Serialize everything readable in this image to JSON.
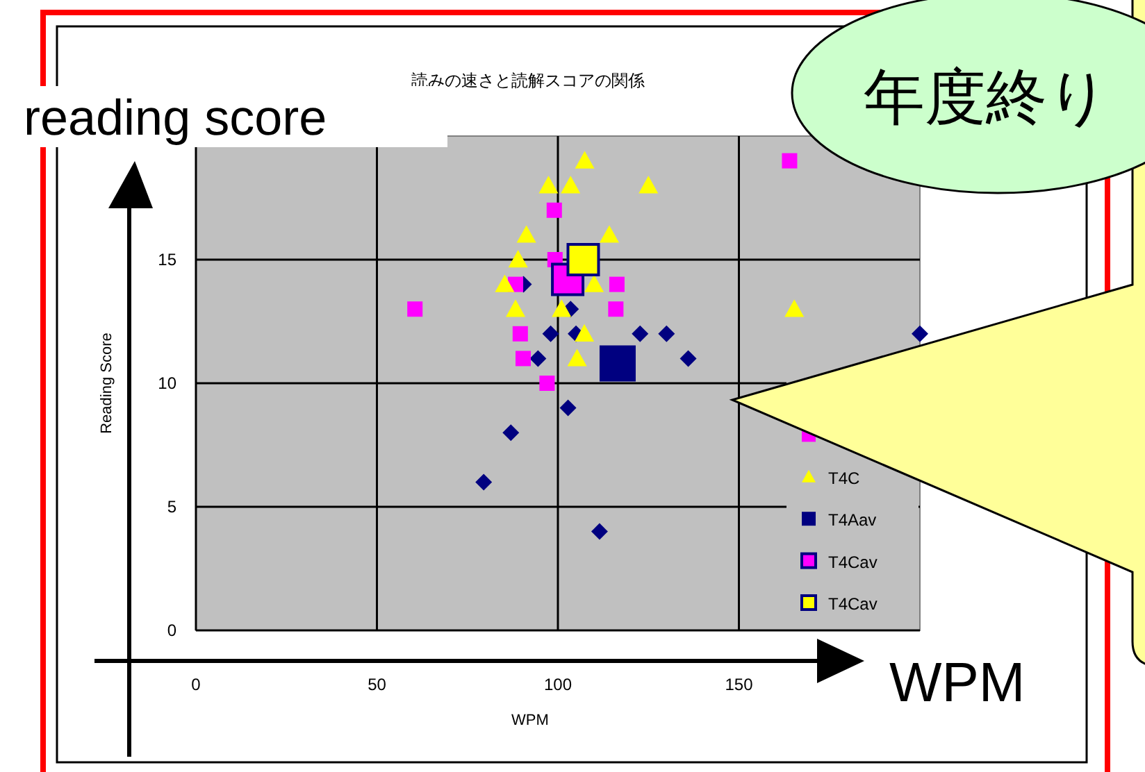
{
  "chart_data": {
    "type": "scatter",
    "title": "読みの速さと読解スコアの関係",
    "xlabel": "WPM",
    "ylabel": "Reading Score",
    "xlim": [
      0,
      200
    ],
    "ylim": [
      0,
      20
    ],
    "xticks": [
      0,
      50,
      100,
      150
    ],
    "yticks": [
      0,
      5,
      10,
      15
    ],
    "grid": true,
    "legend": "right",
    "annotations": [
      "reading score",
      "WPM",
      "年度終り"
    ],
    "series": [
      {
        "marker": "diamond",
        "color": "#000080",
        "x": [
          90.5,
          103.5,
          98,
          105,
          122.7,
          130,
          94.5,
          136,
          200,
          102.8,
          87,
          79.5,
          111.5
        ],
        "values": [
          14,
          13,
          12,
          12,
          12,
          12,
          11,
          11,
          12,
          9,
          8,
          6,
          4
        ]
      },
      {
        "marker": "square",
        "color": "#ff00ff",
        "x": [
          164,
          99,
          99.2,
          88.3,
          116.3,
          60.5,
          116,
          89.6,
          90.4,
          97
        ],
        "values": [
          19,
          17,
          15,
          14,
          14,
          13,
          13,
          12,
          11,
          10
        ]
      },
      {
        "name": "T4C",
        "marker": "triangle",
        "color": "#ffff00",
        "x": [
          107.4,
          97.4,
          103.5,
          125,
          91.3,
          114.2,
          89,
          85.3,
          110,
          88.3,
          101,
          165.3,
          107.3,
          105.3
        ],
        "values": [
          19,
          18,
          18,
          18,
          16,
          16,
          15,
          14,
          14,
          13,
          13,
          13,
          12,
          11
        ]
      },
      {
        "name": "T4Aav",
        "marker": "square",
        "color": "#000080",
        "x": [
          116.5
        ],
        "values": [
          10.8
        ]
      },
      {
        "name": "T4Cav",
        "marker": "square",
        "color": "#ff00ff",
        "x": [
          102.7
        ],
        "values": [
          14.2
        ]
      },
      {
        "name": "T4Cav",
        "marker": "square",
        "color": "#ffff00",
        "x": [
          107
        ],
        "values": [
          15
        ]
      }
    ]
  }
}
